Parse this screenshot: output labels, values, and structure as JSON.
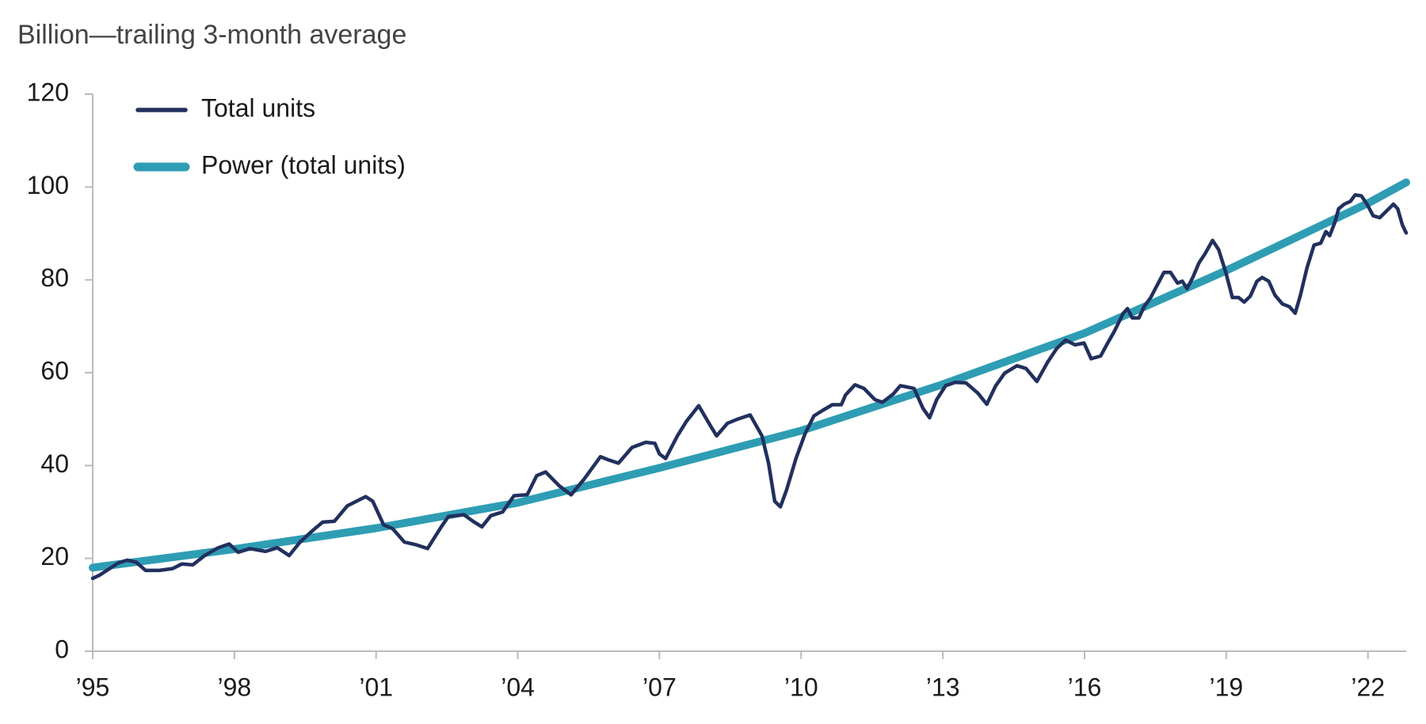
{
  "chart_data": {
    "type": "line",
    "title": "Billion—trailing 3-month average",
    "xlim": [
      1995,
      2022.81
    ],
    "xticks": [
      {
        "value": 1995,
        "label": "’95"
      },
      {
        "value": 1998,
        "label": "’98"
      },
      {
        "value": 2001,
        "label": "’01"
      },
      {
        "value": 2004,
        "label": "’04"
      },
      {
        "value": 2007,
        "label": "’07"
      },
      {
        "value": 2010,
        "label": "’10"
      },
      {
        "value": 2013,
        "label": "’13"
      },
      {
        "value": 2016,
        "label": "’16"
      },
      {
        "value": 2019,
        "label": "’19"
      },
      {
        "value": 2022,
        "label": "’22"
      }
    ],
    "ylim": [
      0,
      120
    ],
    "yticks": [
      0,
      20,
      40,
      60,
      80,
      100,
      120
    ],
    "legend": "upper left",
    "series": [
      {
        "name": "Total units",
        "color": "#22305e",
        "x": [
          1995.0,
          1995.15,
          1995.54,
          1995.73,
          1995.92,
          1996.12,
          1996.41,
          1996.69,
          1996.89,
          1997.12,
          1997.37,
          1997.66,
          1997.89,
          1998.08,
          1998.33,
          1998.66,
          1998.91,
          1999.16,
          1999.39,
          1999.68,
          1999.87,
          2000.12,
          2000.39,
          2000.78,
          2000.93,
          2001.16,
          2001.35,
          2001.6,
          2001.86,
          2002.09,
          2002.38,
          2002.53,
          2002.86,
          2003.05,
          2003.24,
          2003.43,
          2003.68,
          2003.92,
          2004.2,
          2004.4,
          2004.59,
          2004.88,
          2005.13,
          2005.4,
          2005.75,
          2005.9,
          2006.13,
          2006.42,
          2006.71,
          2006.9,
          2007.0,
          2007.13,
          2007.38,
          2007.57,
          2007.83,
          2008.09,
          2008.21,
          2008.44,
          2008.63,
          2008.92,
          2009.17,
          2009.31,
          2009.44,
          2009.56,
          2009.69,
          2009.89,
          2010.08,
          2010.27,
          2010.46,
          2010.66,
          2010.85,
          2010.94,
          2011.14,
          2011.33,
          2011.56,
          2011.72,
          2011.95,
          2012.1,
          2012.39,
          2012.58,
          2012.72,
          2012.87,
          2013.06,
          2013.26,
          2013.49,
          2013.74,
          2013.93,
          2014.12,
          2014.31,
          2014.57,
          2014.76,
          2014.99,
          2015.22,
          2015.41,
          2015.6,
          2015.8,
          2015.99,
          2016.14,
          2016.34,
          2016.49,
          2016.63,
          2016.82,
          2016.91,
          2017.01,
          2017.15,
          2017.26,
          2017.4,
          2017.53,
          2017.68,
          2017.82,
          2017.97,
          2018.07,
          2018.17,
          2018.3,
          2018.42,
          2018.55,
          2018.71,
          2018.84,
          2018.99,
          2019.13,
          2019.26,
          2019.38,
          2019.51,
          2019.65,
          2019.76,
          2019.9,
          2020.03,
          2020.19,
          2020.34,
          2020.46,
          2020.57,
          2020.71,
          2020.86,
          2021.0,
          2021.11,
          2021.19,
          2021.3,
          2021.38,
          2021.5,
          2021.63,
          2021.73,
          2021.86,
          2021.98,
          2022.11,
          2022.25,
          2022.4,
          2022.54,
          2022.63,
          2022.73,
          2022.81
        ],
        "values": [
          15.7,
          16.4,
          19.0,
          19.6,
          19.2,
          17.4,
          17.4,
          17.8,
          18.8,
          18.6,
          20.6,
          22.3,
          23.1,
          21.3,
          22.1,
          21.5,
          22.3,
          20.6,
          23.5,
          26.2,
          27.8,
          28.0,
          31.3,
          33.3,
          32.3,
          27.2,
          26.4,
          23.5,
          22.9,
          22.1,
          26.8,
          29.0,
          29.4,
          28.0,
          26.8,
          29.2,
          30.0,
          33.5,
          33.7,
          37.8,
          38.6,
          35.6,
          33.7,
          37.0,
          41.9,
          41.3,
          40.5,
          43.9,
          45.0,
          44.8,
          42.5,
          41.5,
          46.4,
          49.5,
          52.9,
          48.4,
          46.4,
          49.1,
          49.9,
          50.9,
          46.4,
          40.5,
          32.3,
          31.1,
          34.7,
          41.5,
          46.8,
          50.7,
          51.9,
          53.1,
          53.1,
          55.2,
          57.4,
          56.6,
          54.2,
          53.6,
          55.4,
          57.2,
          56.6,
          52.3,
          50.3,
          54.2,
          57.2,
          57.9,
          57.8,
          55.6,
          53.2,
          57.2,
          59.9,
          61.5,
          60.9,
          58.1,
          62.3,
          65.2,
          67.0,
          66.0,
          66.4,
          63.0,
          63.6,
          66.4,
          68.9,
          72.8,
          73.8,
          71.8,
          71.8,
          74.2,
          76.2,
          78.7,
          81.6,
          81.6,
          79.3,
          79.7,
          78.1,
          80.7,
          83.6,
          85.6,
          88.5,
          86.5,
          81.6,
          76.2,
          76.2,
          75.2,
          76.5,
          79.7,
          80.5,
          79.7,
          76.7,
          74.8,
          74.2,
          72.8,
          76.7,
          82.6,
          87.5,
          87.9,
          90.4,
          89.5,
          92.4,
          95.3,
          96.3,
          96.9,
          98.3,
          98.1,
          96.3,
          93.8,
          93.4,
          94.9,
          96.3,
          95.3,
          91.8,
          90.1
        ]
      },
      {
        "name": "Power (total units)",
        "color": "#2e9db4",
        "x": [
          1995,
          1998,
          2001,
          2004,
          2007,
          2010,
          2013,
          2016,
          2019,
          2022,
          2022.81
        ],
        "values": [
          18,
          22,
          26.5,
          32,
          39.5,
          47.5,
          57.5,
          68.5,
          82,
          96.5,
          101
        ]
      }
    ]
  }
}
